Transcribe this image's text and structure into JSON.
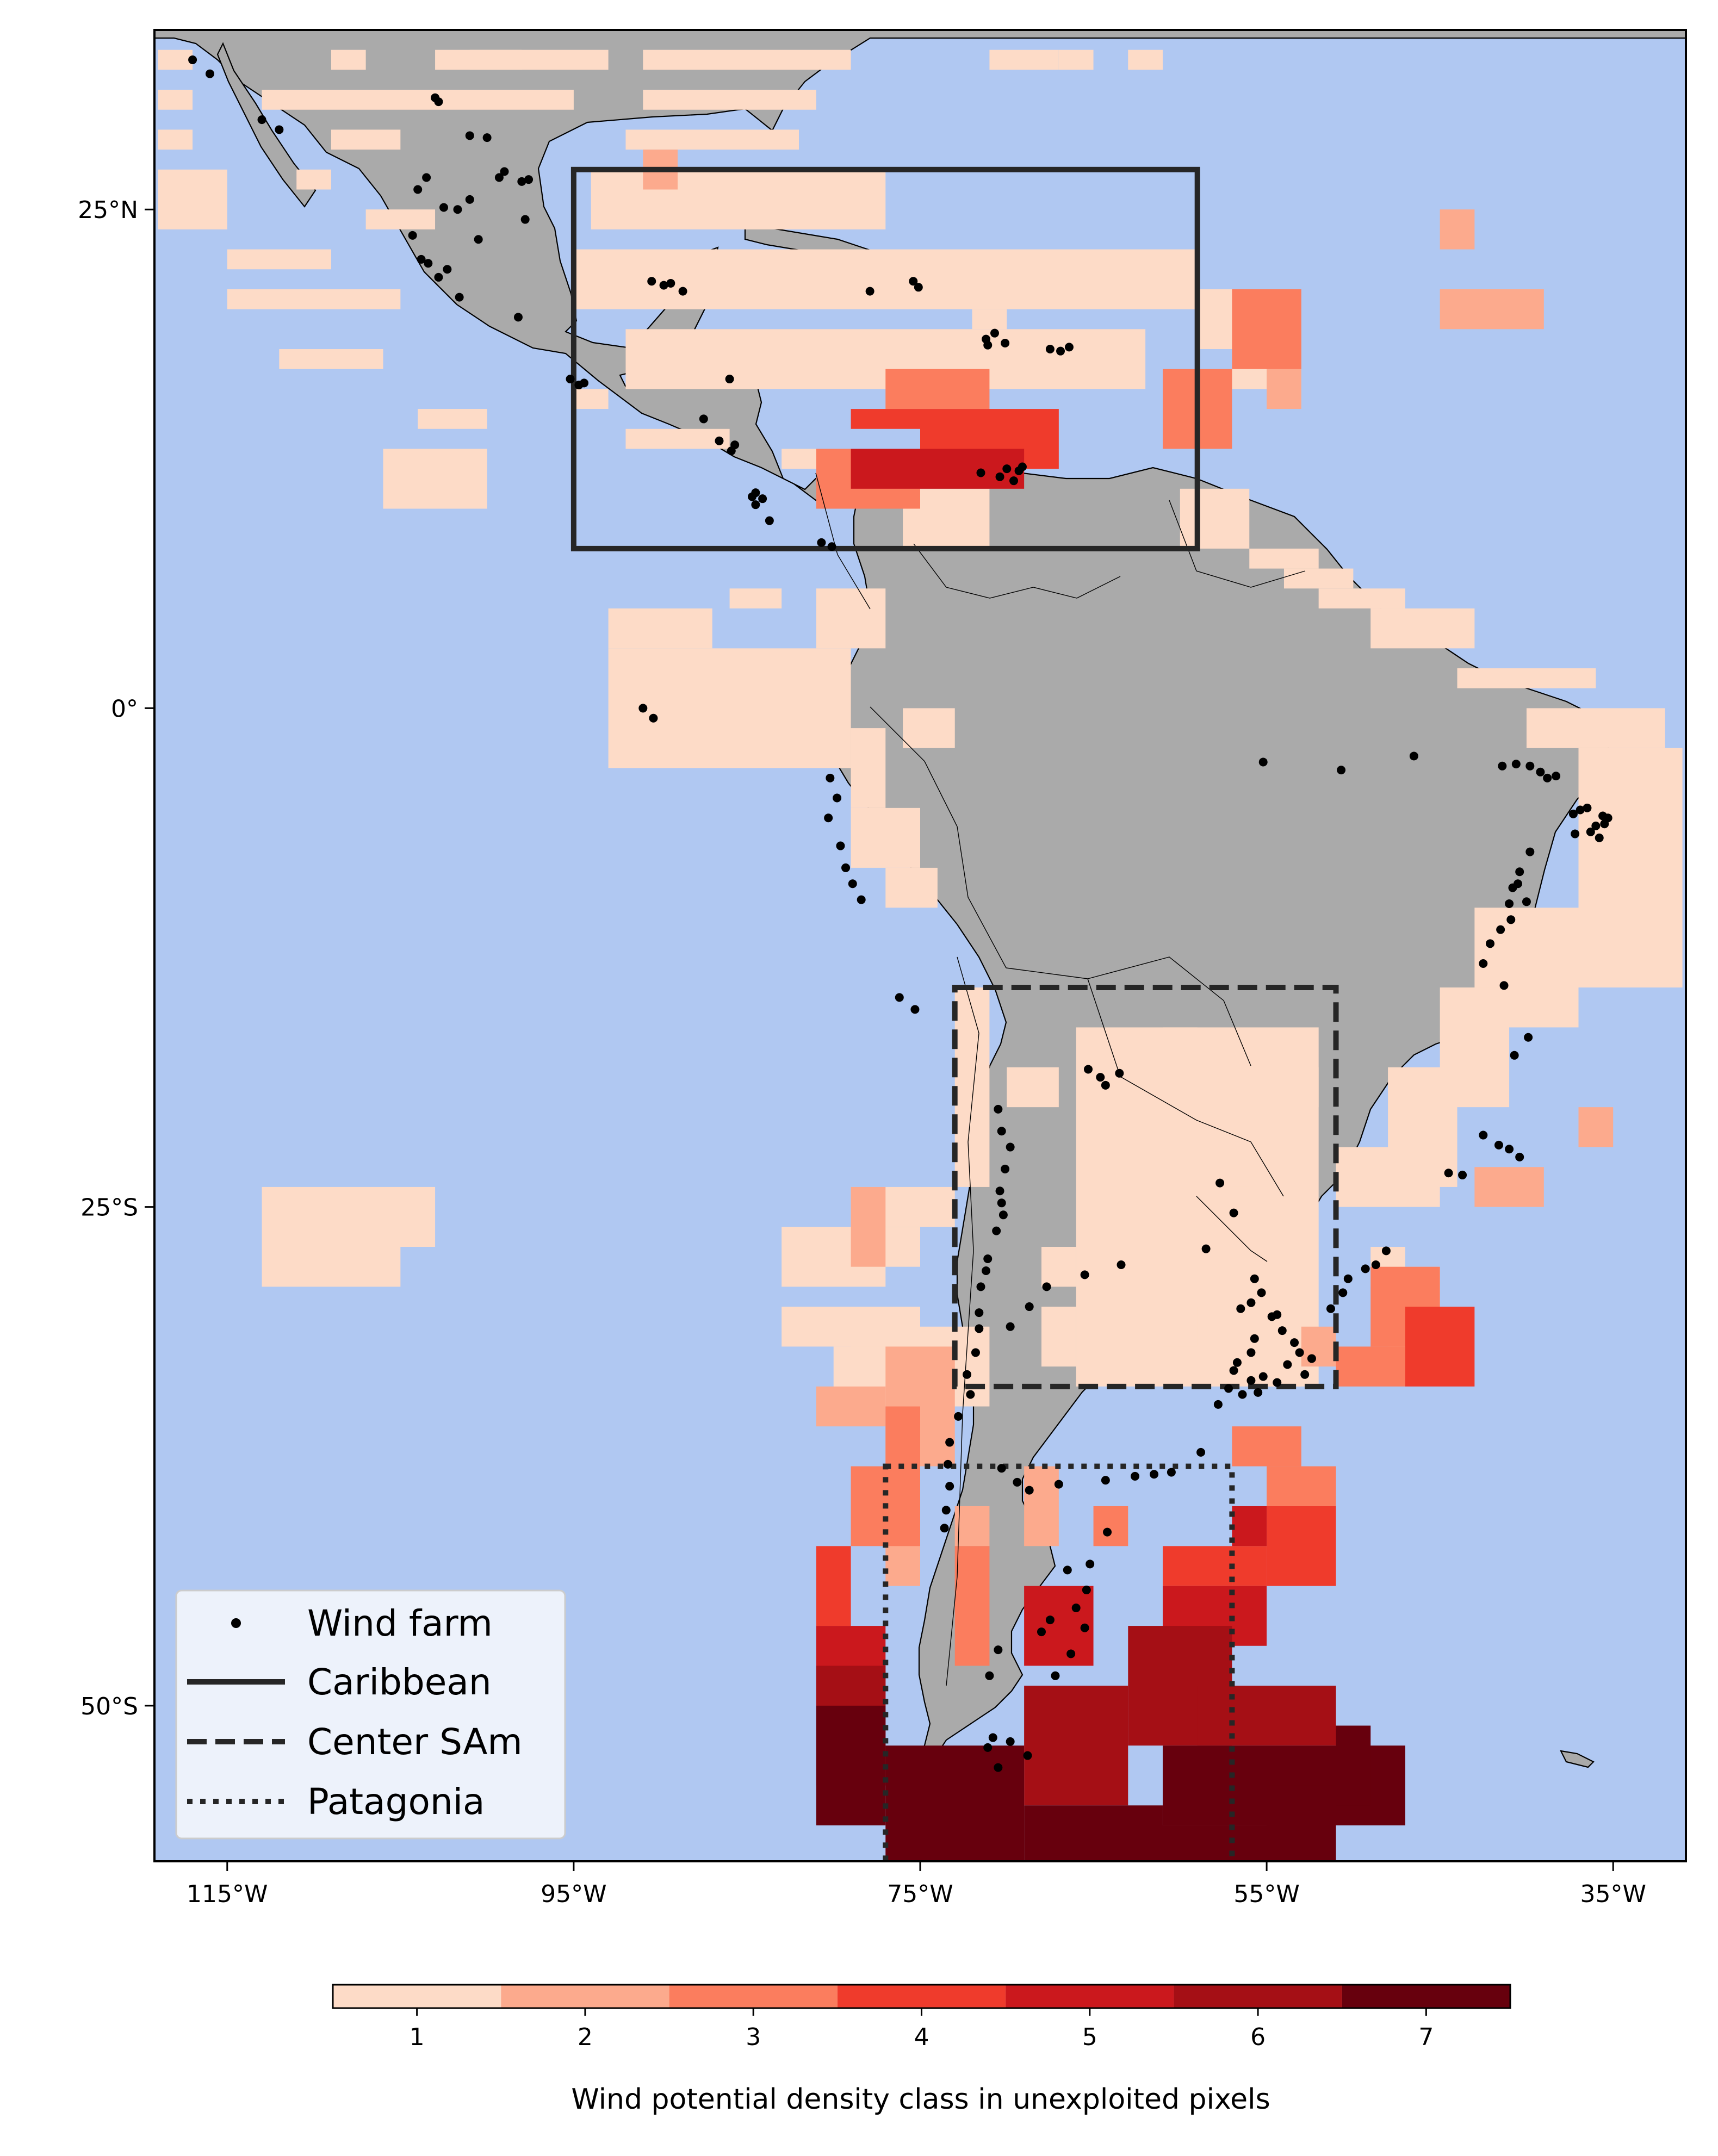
{
  "chart_data": {
    "type": "map",
    "title": "",
    "region": "Latin America and the Caribbean",
    "ocean_color": "#b0c8f2",
    "land_color": "#aaaaaa",
    "xaxis": {
      "ticks": [
        {
          "lon": -115,
          "label": "115°W"
        },
        {
          "lon": -95,
          "label": "95°W"
        },
        {
          "lon": -75,
          "label": "75°W"
        },
        {
          "lon": -55,
          "label": "55°W"
        },
        {
          "lon": -35,
          "label": "35°W"
        }
      ],
      "range": [
        -119.2,
        -30.8
      ]
    },
    "yaxis": {
      "ticks": [
        {
          "lat": 25,
          "label": "25°N"
        },
        {
          "lat": 0,
          "label": "0°"
        },
        {
          "lat": -25,
          "label": "25°S"
        },
        {
          "lat": -50,
          "label": "50°S"
        }
      ],
      "range": [
        -57.8,
        34.0
      ]
    },
    "regions": [
      {
        "name": "Caribbean",
        "style": "solid",
        "lon_min": -95,
        "lon_max": -59,
        "lat_min": 8,
        "lat_max": 27
      },
      {
        "name": "Center SAm",
        "style": "dashed",
        "lon_min": -73,
        "lon_max": -51,
        "lat_min": -34,
        "lat_max": -14
      },
      {
        "name": "Patagonia",
        "style": "dotted",
        "lon_min": -77,
        "lon_max": -57,
        "lat_min": -58,
        "lat_max": -38
      }
    ],
    "legend": {
      "position": "lower-left",
      "entries": [
        {
          "label": "Wind farm",
          "marker": "dot"
        },
        {
          "label": "Caribbean",
          "marker": "solid-line"
        },
        {
          "label": "Center SAm",
          "marker": "dashed-line"
        },
        {
          "label": "Patagonia",
          "marker": "dotted-line"
        }
      ]
    },
    "colorbar": {
      "label": "Wind potential density class in unexploited pixels",
      "classes": [
        1,
        2,
        3,
        4,
        5,
        6,
        7
      ],
      "colors": [
        "#fddbc7",
        "#fcaa8d",
        "#fb7d5e",
        "#ef3b2c",
        "#cb181d",
        "#a50f15",
        "#67000d"
      ]
    },
    "cells": [
      [
        -119,
        33,
        2,
        1
      ],
      [
        -109,
        33,
        2,
        1
      ],
      [
        -103,
        33,
        5,
        1
      ],
      [
        -119,
        31,
        2,
        1
      ],
      [
        -113,
        31,
        18,
        1
      ],
      [
        -119,
        29,
        2,
        1
      ],
      [
        -109,
        29,
        4,
        1
      ],
      [
        -119,
        27,
        4,
        3
      ],
      [
        -111,
        27,
        2,
        1
      ],
      [
        -107,
        25,
        4,
        1
      ],
      [
        -115,
        23,
        6,
        1
      ],
      [
        -115,
        21,
        10,
        1
      ],
      [
        -112,
        18,
        6,
        1
      ],
      [
        -101,
        33,
        8,
        1
      ],
      [
        -91,
        33,
        12,
        1
      ],
      [
        -91,
        31,
        10,
        1
      ],
      [
        -92,
        29,
        10,
        1
      ],
      [
        -94,
        27,
        17,
        3
      ],
      [
        -71,
        33,
        4,
        1
      ],
      [
        -67,
        33,
        2,
        1
      ],
      [
        -63,
        33,
        2,
        1
      ],
      [
        -95,
        23,
        36,
        3
      ],
      [
        -92,
        19,
        30,
        3
      ],
      [
        -59,
        21,
        2,
        3
      ],
      [
        -57,
        20,
        2,
        4
      ],
      [
        -95,
        16,
        2,
        1
      ],
      [
        -92,
        14,
        6,
        1
      ],
      [
        -83,
        13,
        7,
        1
      ],
      [
        -72,
        20,
        2,
        1
      ],
      [
        -104,
        15,
        4,
        1
      ],
      [
        -106,
        13,
        6,
        3
      ],
      [
        -76,
        11,
        5,
        3
      ],
      [
        -60,
        11,
        4,
        3
      ],
      [
        -56,
        8,
        4,
        1
      ],
      [
        -54,
        7,
        4,
        1
      ],
      [
        -52,
        6,
        5,
        1
      ],
      [
        -49,
        5,
        6,
        2
      ],
      [
        -93,
        5,
        6,
        2
      ],
      [
        -93,
        3,
        14,
        6
      ],
      [
        -81,
        6,
        4,
        3
      ],
      [
        -86,
        6,
        3,
        1
      ],
      [
        -76,
        0,
        3,
        2
      ],
      [
        -79,
        -1,
        2,
        4
      ],
      [
        -79,
        -5,
        4,
        3
      ],
      [
        -77,
        -8,
        3,
        2
      ],
      [
        -44,
        2,
        8,
        1
      ],
      [
        -40,
        0,
        8,
        2
      ],
      [
        -37,
        -2,
        6,
        12
      ],
      [
        -43,
        -10,
        6,
        6
      ],
      [
        -45,
        -14,
        4,
        6
      ],
      [
        -48,
        -18,
        4,
        6
      ],
      [
        -51,
        -22,
        6,
        3
      ],
      [
        -57,
        -18,
        5,
        2
      ],
      [
        -61,
        -16,
        2,
        2
      ],
      [
        -73,
        -14,
        2,
        10
      ],
      [
        -79,
        -24,
        6,
        2
      ],
      [
        -79,
        -26,
        4,
        2
      ],
      [
        -80,
        -32,
        2,
        3
      ],
      [
        -79,
        -31,
        8,
        4
      ],
      [
        -83,
        -30,
        8,
        2
      ],
      [
        -83,
        -26,
        6,
        3
      ],
      [
        -70,
        -18,
        3,
        2
      ],
      [
        -66,
        -16,
        14,
        18
      ],
      [
        -55,
        -28,
        2,
        6
      ],
      [
        -49,
        -27,
        2,
        2
      ],
      [
        -47,
        -28,
        2,
        2
      ],
      [
        -48,
        -31,
        2,
        2
      ],
      [
        -113,
        -24,
        10,
        3
      ],
      [
        -113,
        -27,
        8,
        2
      ],
      [
        -64,
        -22,
        2,
        4
      ],
      [
        -68,
        -27,
        2,
        2
      ],
      [
        -68,
        -30,
        2,
        3
      ],
      [
        -61,
        -30,
        2,
        2
      ],
      [
        -57,
        -22,
        1,
        2
      ]
    ],
    "cells_class2": [
      [
        -91,
        28,
        2,
        2
      ],
      [
        -45,
        25,
        2,
        2
      ],
      [
        -45,
        21,
        6,
        2
      ],
      [
        -55,
        19,
        2,
        4
      ],
      [
        -79,
        -24,
        2,
        4
      ],
      [
        -77,
        -32,
        4,
        6
      ],
      [
        -81,
        -34,
        4,
        2
      ],
      [
        -37,
        -20,
        2,
        2
      ],
      [
        -43,
        -23,
        4,
        2
      ],
      [
        -53,
        -31,
        2,
        2
      ],
      [
        -77,
        -38,
        2,
        6
      ],
      [
        -69,
        -38,
        2,
        4
      ],
      [
        -73,
        -40,
        2,
        2
      ]
    ],
    "cells_class3": [
      [
        -77,
        17,
        6,
        2
      ],
      [
        -81,
        13,
        6,
        3
      ],
      [
        -61,
        17,
        4,
        4
      ],
      [
        -57,
        21,
        4,
        4
      ],
      [
        -49,
        -28,
        4,
        4
      ],
      [
        -51,
        -32,
        4,
        2
      ],
      [
        -77,
        -35,
        2,
        4
      ],
      [
        -79,
        -38,
        4,
        4
      ],
      [
        -73,
        -42,
        2,
        6
      ],
      [
        -65,
        -40,
        2,
        2
      ],
      [
        -57,
        -36,
        4,
        2
      ],
      [
        -55,
        -38,
        4,
        2
      ]
    ],
    "cells_class4": [
      [
        -75,
        15,
        8,
        3
      ],
      [
        -79,
        15,
        4,
        1
      ],
      [
        -47,
        -30,
        4,
        4
      ],
      [
        -55,
        -40,
        4,
        4
      ],
      [
        -57,
        -42,
        2,
        2
      ],
      [
        -61,
        -42,
        4,
        2
      ],
      [
        -81,
        -42,
        2,
        4
      ]
    ],
    "cells_class5": [
      [
        -79,
        13,
        10,
        2
      ],
      [
        -61,
        -44,
        6,
        3
      ],
      [
        -81,
        -46,
        4,
        4
      ],
      [
        -69,
        -44,
        4,
        4
      ],
      [
        -57,
        -40,
        2,
        2
      ]
    ],
    "cells_class6": [
      [
        -63,
        -46,
        6,
        6
      ],
      [
        -59,
        -49,
        8,
        3
      ],
      [
        -69,
        -49,
        6,
        6
      ],
      [
        -81,
        -48,
        4,
        6
      ],
      [
        -79,
        -52,
        2,
        2
      ]
    ],
    "cells_class7": [
      [
        -81,
        -50,
        4,
        6
      ],
      [
        -77,
        -52,
        8,
        8
      ],
      [
        -69,
        -55,
        8,
        4
      ],
      [
        -61,
        -52,
        14,
        4
      ],
      [
        -63,
        -56,
        12,
        4
      ],
      [
        -51,
        -51,
        2,
        4
      ],
      [
        -55,
        -54,
        4,
        2
      ]
    ],
    "wind_farms": [
      [
        -117,
        32.5
      ],
      [
        -116,
        31.8
      ],
      [
        -113,
        29.5
      ],
      [
        -112,
        29
      ],
      [
        -103,
        30.6
      ],
      [
        -102.8,
        30.4
      ],
      [
        -101,
        28.7
      ],
      [
        -100,
        28.6
      ],
      [
        -99,
        26.9
      ],
      [
        -99.3,
        26.6
      ],
      [
        -98,
        26.4
      ],
      [
        -97.6,
        26.5
      ],
      [
        -97.8,
        24.5
      ],
      [
        -101,
        25.5
      ],
      [
        -103.5,
        26.6
      ],
      [
        -104,
        26
      ],
      [
        -102.5,
        25.1
      ],
      [
        -103.8,
        22.5
      ],
      [
        -103.4,
        22.3
      ],
      [
        -102.3,
        22
      ],
      [
        -102.8,
        21.6
      ],
      [
        -101.6,
        20.6
      ],
      [
        -100.5,
        23.5
      ],
      [
        -101.7,
        25
      ],
      [
        -104.3,
        23.7
      ],
      [
        -98.2,
        19.6
      ],
      [
        -95.2,
        16.5
      ],
      [
        -94.7,
        16.2
      ],
      [
        -94.4,
        16.3
      ],
      [
        -90.5,
        21.4
      ],
      [
        -89.8,
        21.2
      ],
      [
        -89.4,
        21.3
      ],
      [
        -88.7,
        20.9
      ],
      [
        -86,
        16.5
      ],
      [
        -87.5,
        14.5
      ],
      [
        -86.6,
        13.4
      ],
      [
        -85.7,
        13.2
      ],
      [
        -85.9,
        12.9
      ],
      [
        -84.5,
        10.8
      ],
      [
        -84.7,
        10.6
      ],
      [
        -84.1,
        10.5
      ],
      [
        -84.5,
        10.2
      ],
      [
        -83.7,
        9.4
      ],
      [
        -80.7,
        8.3
      ],
      [
        -80.1,
        8.1
      ],
      [
        -77.9,
        20.9
      ],
      [
        -75.4,
        21.4
      ],
      [
        -75.1,
        21.1
      ],
      [
        -70.7,
        18.8
      ],
      [
        -71.2,
        18.5
      ],
      [
        -71.1,
        18.2
      ],
      [
        -70.1,
        18.3
      ],
      [
        -67.5,
        18
      ],
      [
        -66.9,
        17.9
      ],
      [
        -66.4,
        18.1
      ],
      [
        -71.5,
        11.8
      ],
      [
        -70.4,
        11.6
      ],
      [
        -70,
        12
      ],
      [
        -69.6,
        11.4
      ],
      [
        -69.1,
        12.1
      ],
      [
        -69.3,
        11.9
      ],
      [
        -91,
        0
      ],
      [
        -90.4,
        -0.5
      ],
      [
        -80.2,
        -3.5
      ],
      [
        -79.8,
        -4.5
      ],
      [
        -80.3,
        -5.5
      ],
      [
        -79.6,
        -6.9
      ],
      [
        -79.3,
        -8
      ],
      [
        -78.9,
        -8.8
      ],
      [
        -78.4,
        -9.6
      ],
      [
        -76.2,
        -14.5
      ],
      [
        -75.3,
        -15.1
      ],
      [
        -65.3,
        -18.1
      ],
      [
        -64.6,
        -18.5
      ],
      [
        -63.5,
        -18.3
      ],
      [
        -64.3,
        -18.9
      ],
      [
        -70.5,
        -20.1
      ],
      [
        -70.3,
        -21.2
      ],
      [
        -69.8,
        -22
      ],
      [
        -70.1,
        -23.1
      ],
      [
        -70.4,
        -24.2
      ],
      [
        -70.3,
        -24.8
      ],
      [
        -70.2,
        -25.4
      ],
      [
        -70.6,
        -26.2
      ],
      [
        -71.1,
        -27.6
      ],
      [
        -71.2,
        -28.2
      ],
      [
        -71.5,
        -29
      ],
      [
        -71.6,
        -30.3
      ],
      [
        -71.6,
        -31.1
      ],
      [
        -71.8,
        -32.3
      ],
      [
        -72.3,
        -33.4
      ],
      [
        -72.1,
        -34.4
      ],
      [
        -72.8,
        -35.5
      ],
      [
        -73.3,
        -36.8
      ],
      [
        -73.4,
        -37.9
      ],
      [
        -73.3,
        -39
      ],
      [
        -73.5,
        -40.2
      ],
      [
        -73.6,
        -41.1
      ],
      [
        -69.8,
        -31
      ],
      [
        -68.7,
        -30
      ],
      [
        -67.7,
        -29
      ],
      [
        -65.5,
        -28.4
      ],
      [
        -63.4,
        -27.9
      ],
      [
        -57.7,
        -23.8
      ],
      [
        -56.9,
        -25.3
      ],
      [
        -58.5,
        -27.1
      ],
      [
        -55.7,
        -28.6
      ],
      [
        -55.3,
        -29.3
      ],
      [
        -55.9,
        -29.8
      ],
      [
        -56.5,
        -30.1
      ],
      [
        -54.4,
        -30.4
      ],
      [
        -54.7,
        -30.5
      ],
      [
        -54.1,
        -31.2
      ],
      [
        -53.4,
        -31.8
      ],
      [
        -53.1,
        -32.3
      ],
      [
        -52.4,
        -32.6
      ],
      [
        -52.8,
        -33.4
      ],
      [
        -51.3,
        -30.1
      ],
      [
        -50.6,
        -29.3
      ],
      [
        -50.3,
        -28.6
      ],
      [
        -49.3,
        -28.1
      ],
      [
        -48.7,
        -27.9
      ],
      [
        -48.1,
        -27.2
      ],
      [
        -55.9,
        -32.3
      ],
      [
        -55.2,
        -33.5
      ],
      [
        -56.9,
        -33.2
      ],
      [
        -57.2,
        -34.1
      ],
      [
        -56.4,
        -34.4
      ],
      [
        -55.5,
        -34.3
      ],
      [
        -54.4,
        -33.8
      ],
      [
        -53.8,
        -32.9
      ],
      [
        -56.7,
        -32.8
      ],
      [
        -55.7,
        -31.6
      ],
      [
        -55.9,
        -33.7
      ],
      [
        -57.8,
        -34.9
      ],
      [
        -58.8,
        -37.3
      ],
      [
        -60.5,
        -38.3
      ],
      [
        -61.5,
        -38.4
      ],
      [
        -62.6,
        -38.5
      ],
      [
        -64.3,
        -38.7
      ],
      [
        -67,
        -38.9
      ],
      [
        -68.7,
        -39.2
      ],
      [
        -69.4,
        -38.8
      ],
      [
        -70.3,
        -38.1
      ],
      [
        -64.2,
        -41.3
      ],
      [
        -65.2,
        -42.9
      ],
      [
        -66.5,
        -43.2
      ],
      [
        -65.4,
        -44.2
      ],
      [
        -66,
        -45.1
      ],
      [
        -67.5,
        -45.7
      ],
      [
        -68,
        -46.3
      ],
      [
        -70.5,
        -47.2
      ],
      [
        -71,
        -48.5
      ],
      [
        -70.8,
        -51.6
      ],
      [
        -71.1,
        -52.1
      ],
      [
        -70.5,
        -53.1
      ],
      [
        -69.8,
        -51.8
      ],
      [
        -68.8,
        -52.5
      ],
      [
        -65.5,
        -46.1
      ],
      [
        -66.3,
        -47.4
      ],
      [
        -67.2,
        -48.5
      ],
      [
        -38.3,
        -3.4
      ],
      [
        -38.8,
        -3.5
      ],
      [
        -39.2,
        -3.2
      ],
      [
        -39.8,
        -2.9
      ],
      [
        -40.6,
        -2.8
      ],
      [
        -41.4,
        -2.9
      ],
      [
        -36.5,
        -5
      ],
      [
        -36.9,
        -5.1
      ],
      [
        -37.3,
        -5.3
      ],
      [
        -35.6,
        -5.4
      ],
      [
        -35.5,
        -5.8
      ],
      [
        -35.3,
        -5.5
      ],
      [
        -36,
        -5.9
      ],
      [
        -36.3,
        -6.2
      ],
      [
        -35.8,
        -6.5
      ],
      [
        -37.2,
        -6.3
      ],
      [
        -39.8,
        -7.2
      ],
      [
        -40.4,
        -8.2
      ],
      [
        -40.8,
        -9
      ],
      [
        -41,
        -9.8
      ],
      [
        -40.9,
        -10.6
      ],
      [
        -41.5,
        -11.1
      ],
      [
        -42.1,
        -11.8
      ],
      [
        -42.5,
        -12.8
      ],
      [
        -41.3,
        -13.9
      ],
      [
        -40.5,
        -8.8
      ],
      [
        -40,
        -9.7
      ],
      [
        -46.5,
        -2.4
      ],
      [
        -50.7,
        -3.1
      ],
      [
        -55.2,
        -2.7
      ],
      [
        -42.5,
        -21.4
      ],
      [
        -41.6,
        -21.9
      ],
      [
        -41,
        -22.1
      ],
      [
        -40.4,
        -22.5
      ],
      [
        -39.9,
        -16.5
      ],
      [
        -40.7,
        -17.4
      ],
      [
        -43.7,
        -23.4
      ],
      [
        -44.5,
        -23.3
      ]
    ]
  }
}
